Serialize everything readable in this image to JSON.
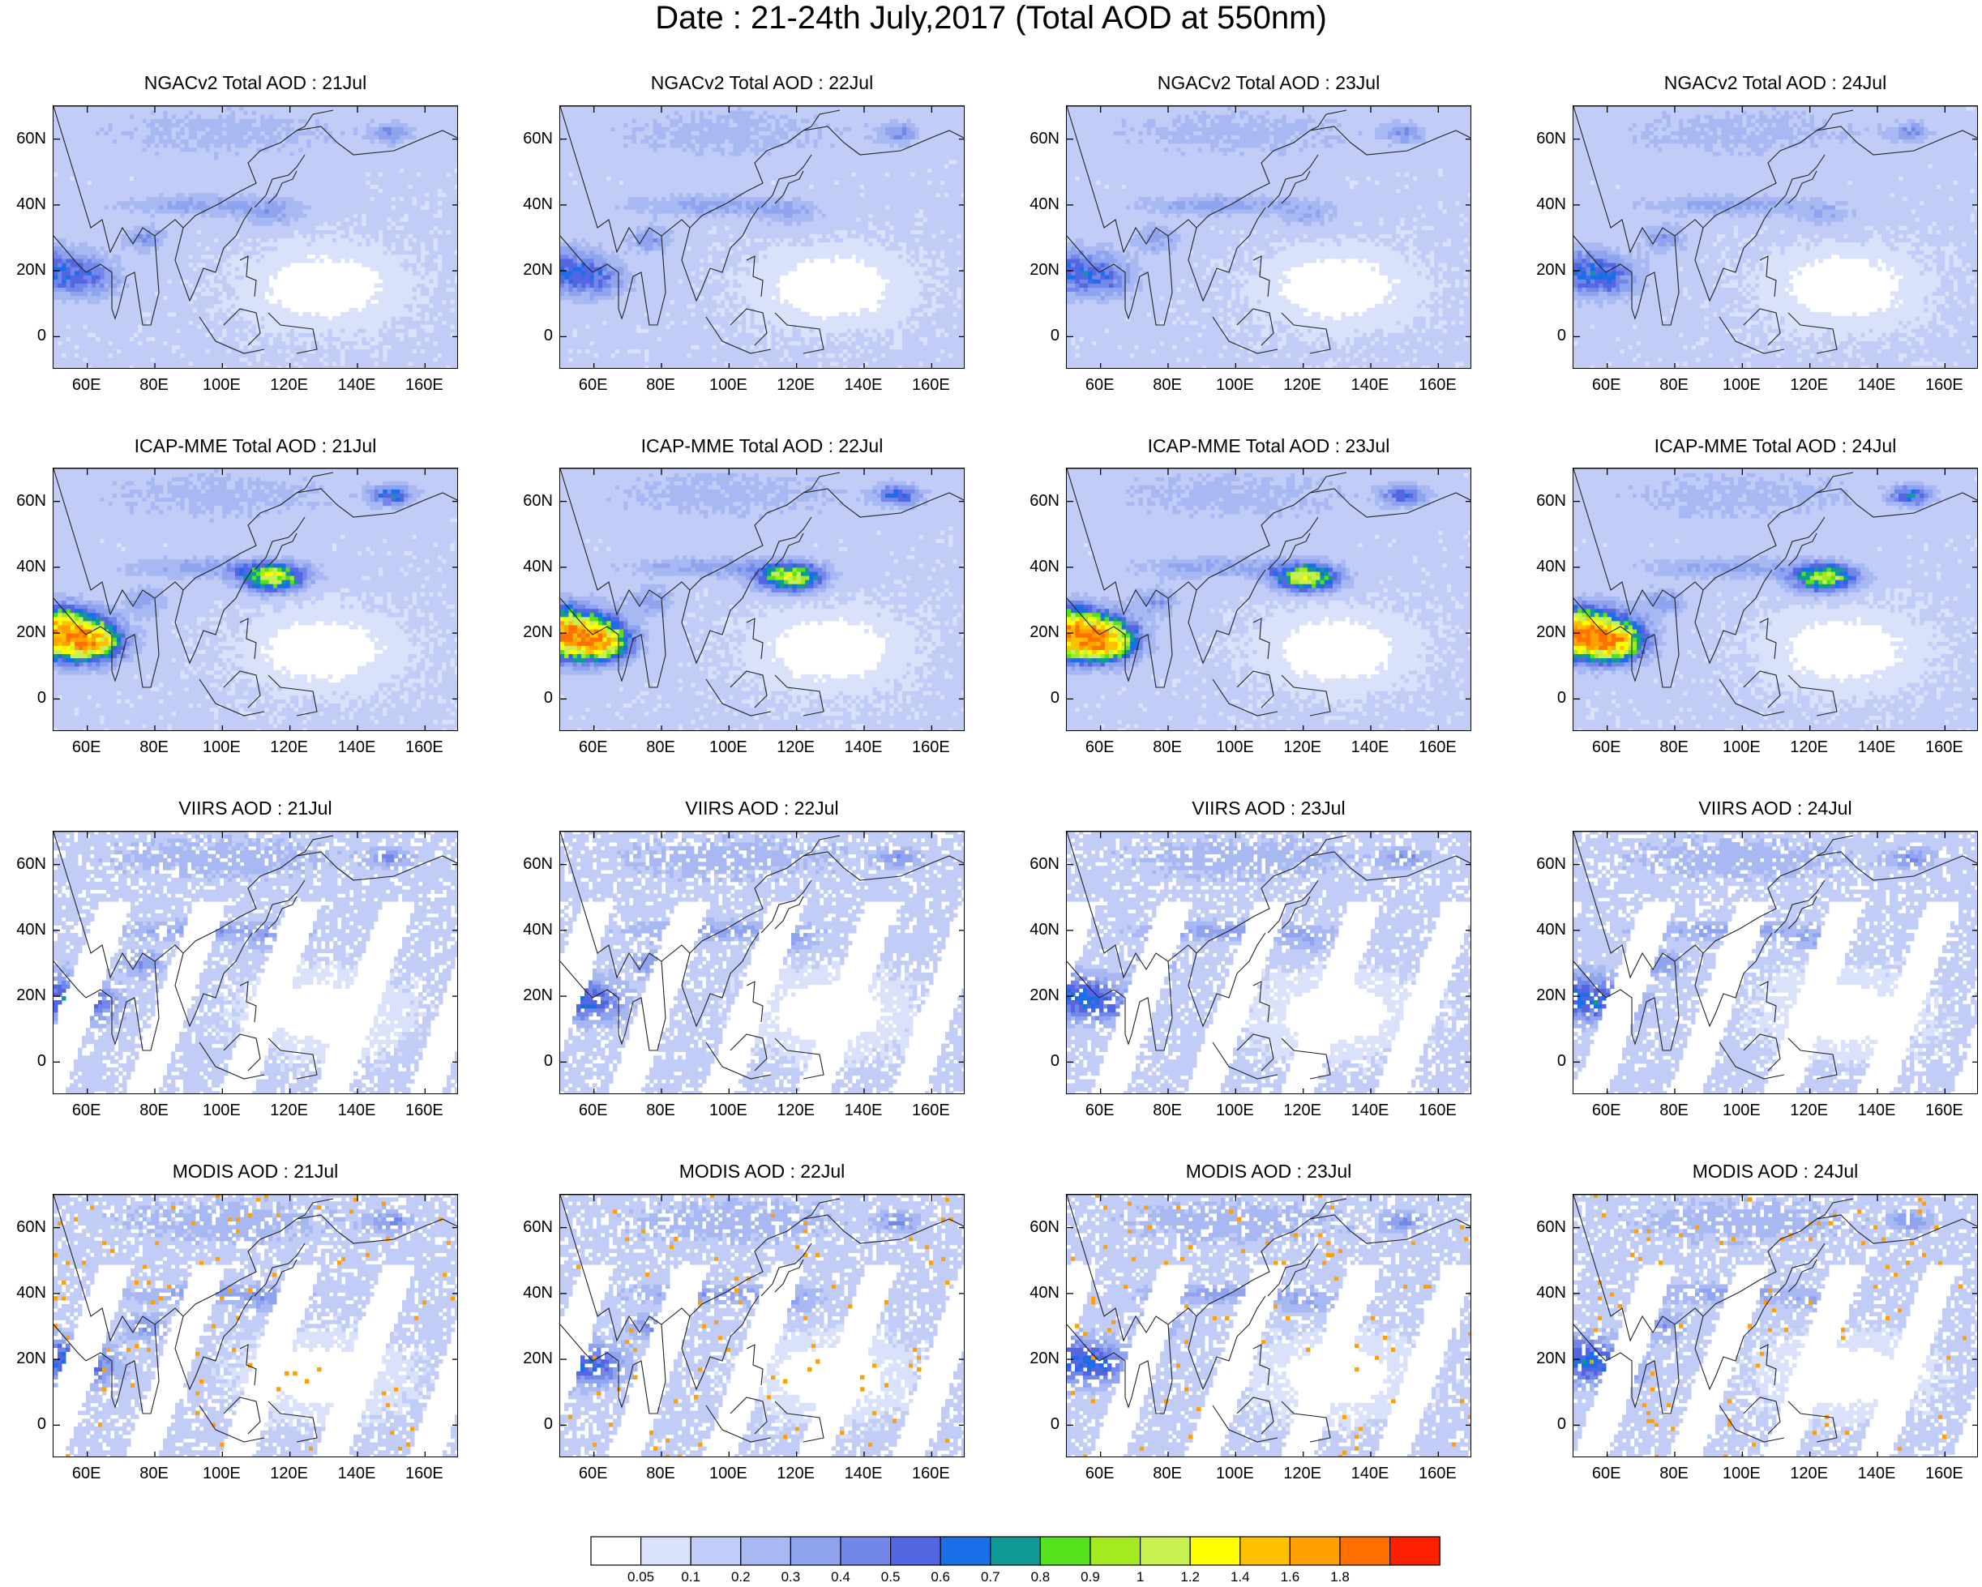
{
  "title": "Date : 21-24th July,2017 (Total AOD at 550nm)",
  "panels": [
    {
      "title": "NGACv2 Total AOD : 21Jul",
      "kind": "ngac",
      "day": 0
    },
    {
      "title": "NGACv2 Total AOD : 22Jul",
      "kind": "ngac",
      "day": 1
    },
    {
      "title": "NGACv2 Total AOD : 23Jul",
      "kind": "ngac",
      "day": 2
    },
    {
      "title": "NGACv2 Total AOD : 24Jul",
      "kind": "ngac",
      "day": 3
    },
    {
      "title": "ICAP-MME Total AOD : 21Jul",
      "kind": "icap",
      "day": 0
    },
    {
      "title": "ICAP-MME Total AOD : 22Jul",
      "kind": "icap",
      "day": 1
    },
    {
      "title": "ICAP-MME Total AOD : 23Jul",
      "kind": "icap",
      "day": 2
    },
    {
      "title": "ICAP-MME Total AOD : 24Jul",
      "kind": "icap",
      "day": 3
    },
    {
      "title": "VIIRS AOD : 21Jul",
      "kind": "viirs",
      "day": 0
    },
    {
      "title": "VIIRS AOD : 22Jul",
      "kind": "viirs",
      "day": 1
    },
    {
      "title": "VIIRS AOD : 23Jul",
      "kind": "viirs",
      "day": 2
    },
    {
      "title": "VIIRS AOD : 24Jul",
      "kind": "viirs",
      "day": 3
    },
    {
      "title": "MODIS AOD : 21Jul",
      "kind": "modis",
      "day": 0
    },
    {
      "title": "MODIS AOD : 22Jul",
      "kind": "modis",
      "day": 1
    },
    {
      "title": "MODIS AOD : 23Jul",
      "kind": "modis",
      "day": 2
    },
    {
      "title": "MODIS AOD : 24Jul",
      "kind": "modis",
      "day": 3
    }
  ],
  "map_extent": {
    "lon": [
      50,
      170
    ],
    "lat": [
      -10,
      70
    ]
  },
  "lat_ticks": [
    {
      "value": 60,
      "label": "60N"
    },
    {
      "value": 40,
      "label": "40N"
    },
    {
      "value": 20,
      "label": "20N"
    },
    {
      "value": 0,
      "label": "0"
    }
  ],
  "lon_ticks": [
    {
      "value": 60,
      "label": "60E"
    },
    {
      "value": 80,
      "label": "80E"
    },
    {
      "value": 100,
      "label": "100E"
    },
    {
      "value": 120,
      "label": "120E"
    },
    {
      "value": 140,
      "label": "140E"
    },
    {
      "value": 160,
      "label": "160E"
    }
  ],
  "colorbar": {
    "labels": [
      "0.05",
      "0.1",
      "0.2",
      "0.3",
      "0.4",
      "0.5",
      "0.6",
      "0.7",
      "0.8",
      "0.9",
      "1",
      "1.2",
      "1.4",
      "1.6",
      "1.8"
    ],
    "colors": [
      "#ffffff",
      "#dae2fb",
      "#c2cdf7",
      "#a8b8f3",
      "#8fa3ef",
      "#7386ea",
      "#5467e3",
      "#1a6ee8",
      "#109a96",
      "#55e21d",
      "#a3ea20",
      "#c8f050",
      "#ffff00",
      "#ffc000",
      "#ff9f00",
      "#ff7000",
      "#ff2000"
    ]
  }
}
